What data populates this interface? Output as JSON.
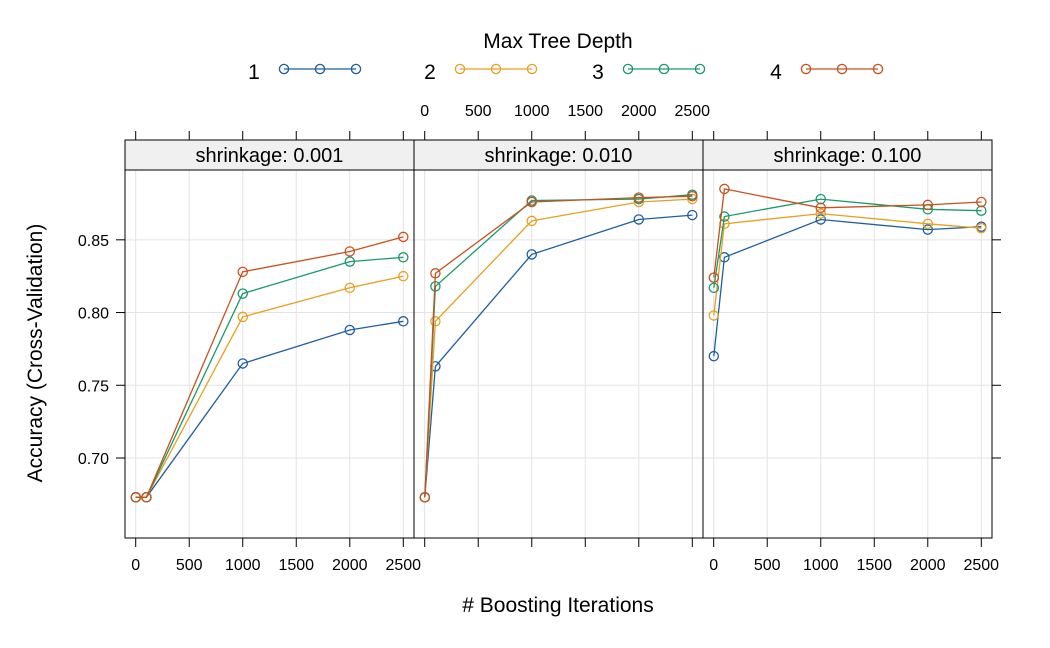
{
  "chart_data": {
    "type": "line",
    "legend_title": "Max Tree Depth",
    "legend_placement": "top",
    "xlabel": "# Boosting Iterations",
    "ylabel": "Accuracy (Cross-Validation)",
    "xlim": [
      -100,
      2600
    ],
    "ylim": [
      0.645,
      0.898
    ],
    "x_ticks": [
      0,
      500,
      1000,
      1500,
      2000,
      2500
    ],
    "y_ticks": [
      0.7,
      0.75,
      0.8,
      0.85
    ],
    "y_tick_labels": [
      "0.70",
      "0.75",
      "0.80",
      "0.85"
    ],
    "grid": true,
    "series_colors": {
      "1": "#1f5fa0",
      "2": "#e8a020",
      "3": "#1a9a6c",
      "4": "#c8521e"
    },
    "panels": [
      {
        "strip": "shrinkage: 0.001",
        "x": [
          1,
          100,
          1000,
          2000,
          2500
        ],
        "series": [
          {
            "name": "1",
            "values": [
              0.673,
              0.673,
              0.765,
              0.788,
              0.794
            ]
          },
          {
            "name": "2",
            "values": [
              0.673,
              0.673,
              0.797,
              0.817,
              0.825
            ]
          },
          {
            "name": "3",
            "values": [
              0.673,
              0.673,
              0.813,
              0.835,
              0.838
            ]
          },
          {
            "name": "4",
            "values": [
              0.673,
              0.673,
              0.828,
              0.842,
              0.852
            ]
          }
        ]
      },
      {
        "strip": "shrinkage: 0.010",
        "x": [
          1,
          100,
          1000,
          2000,
          2500
        ],
        "series": [
          {
            "name": "1",
            "values": [
              0.673,
              0.763,
              0.84,
              0.864,
              0.867
            ]
          },
          {
            "name": "2",
            "values": [
              0.673,
              0.794,
              0.863,
              0.876,
              0.878
            ]
          },
          {
            "name": "3",
            "values": [
              0.673,
              0.818,
              0.877,
              0.878,
              0.881
            ]
          },
          {
            "name": "4",
            "values": [
              0.673,
              0.827,
              0.876,
              0.879,
              0.88
            ]
          }
        ]
      },
      {
        "strip": "shrinkage: 0.100",
        "x": [
          1,
          100,
          1000,
          2000,
          2500
        ],
        "series": [
          {
            "name": "1",
            "values": [
              0.77,
              0.838,
              0.864,
              0.857,
              0.859
            ]
          },
          {
            "name": "2",
            "values": [
              0.798,
              0.861,
              0.868,
              0.861,
              0.858
            ]
          },
          {
            "name": "3",
            "values": [
              0.817,
              0.866,
              0.878,
              0.871,
              0.87
            ]
          },
          {
            "name": "4",
            "values": [
              0.824,
              0.885,
              0.872,
              0.874,
              0.876
            ]
          }
        ]
      }
    ]
  }
}
